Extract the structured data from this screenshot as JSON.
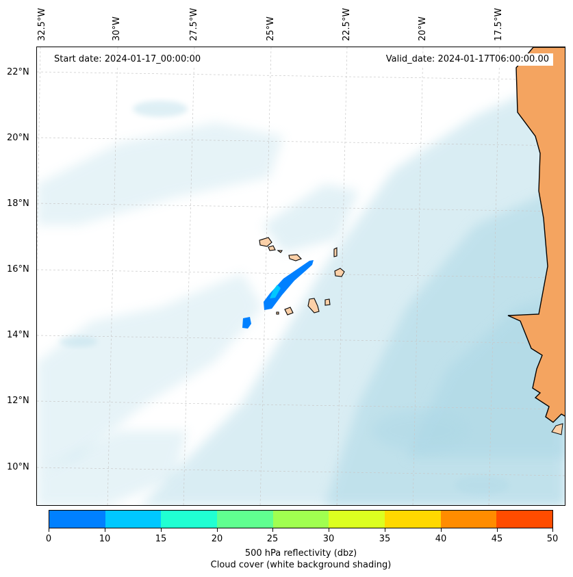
{
  "header": {
    "start_date": "Start date: 2024-01-17_00:00:00",
    "valid_date": "Valid_date: 2024-01-17T06:00:00.00"
  },
  "map": {
    "lon_labels": [
      "32.5°W",
      "30°W",
      "27.5°W",
      "25°W",
      "22.5°W",
      "20°W",
      "17.5°W"
    ],
    "lat_labels": [
      "22°N",
      "20°N",
      "18°N",
      "16°N",
      "14°N",
      "12°N",
      "10°N"
    ],
    "gridlines": true,
    "colors": {
      "cloud": "#add8e6",
      "land": "#f4a460",
      "island": "#fbd0a8",
      "coastline": "#000000"
    }
  },
  "colorbar": {
    "ticks": [
      "0",
      "10",
      "15",
      "20",
      "25",
      "30",
      "35",
      "40",
      "45",
      "50"
    ],
    "colors": [
      "#0080ff",
      "#00c8ff",
      "#20ffd2",
      "#60ff90",
      "#a0ff50",
      "#dcff20",
      "#ffd800",
      "#ff8c00",
      "#ff4c00"
    ],
    "label": "500 hPa reflectivity (dbz)",
    "sublabel": "Cloud cover (white background shading)"
  }
}
